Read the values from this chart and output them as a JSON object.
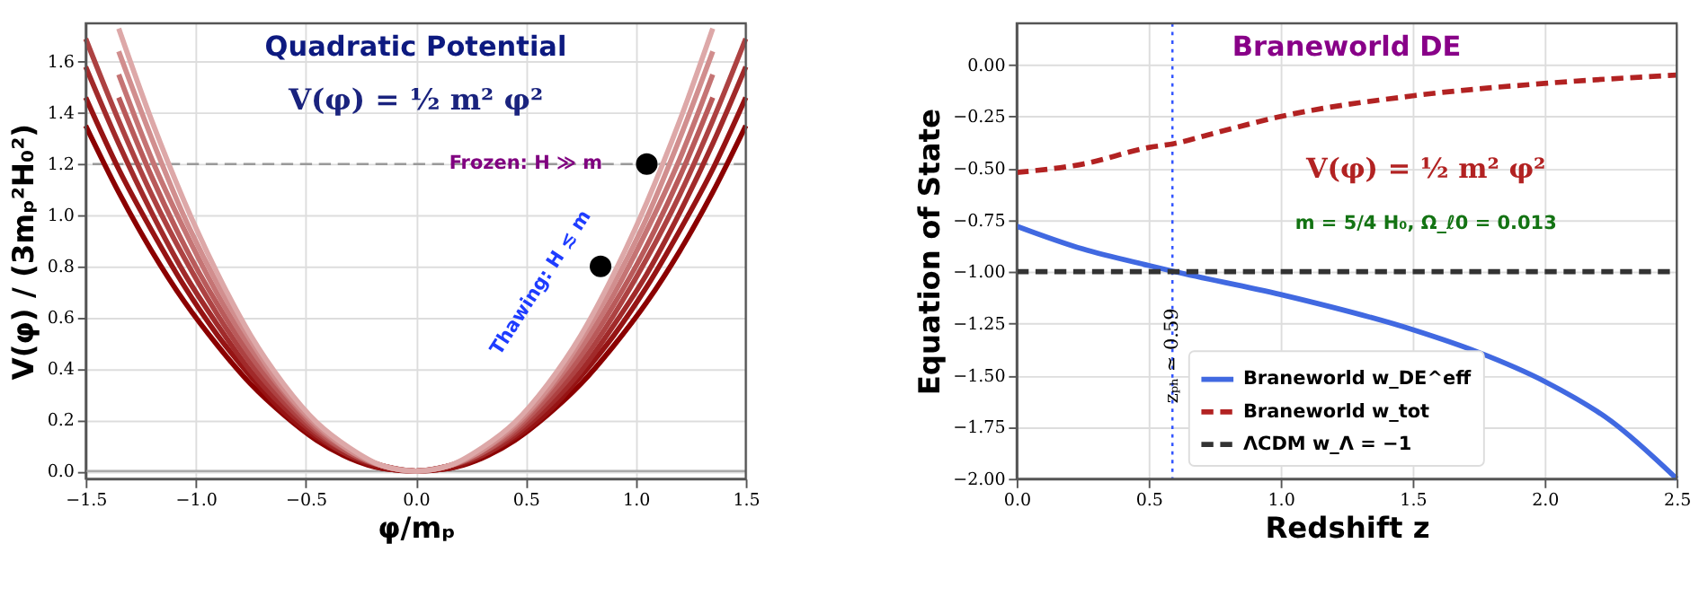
{
  "chart_data": [
    {
      "type": "line",
      "title": "Quadratic Potential",
      "xlabel": "φ/mₚ",
      "ylabel": "V(φ) / (3mₚ²H₀²)",
      "xlim": [
        -1.5,
        1.5
      ],
      "xticks": [
        {
          "value": -1.5,
          "label": "−1.5"
        },
        {
          "value": -1,
          "label": "−1.0"
        },
        {
          "value": -0.5,
          "label": "−0.5"
        },
        {
          "value": 0,
          "label": "0.0"
        },
        {
          "value": 0.5,
          "label": "0.5"
        },
        {
          "value": 1,
          "label": "1.0"
        },
        {
          "value": 1.5,
          "label": "1.5"
        }
      ],
      "ylim": [
        -0.03,
        1.75
      ],
      "yticks": [
        {
          "value": 0,
          "label": "0.0"
        },
        {
          "value": 0.2,
          "label": "0.2"
        },
        {
          "value": 0.4,
          "label": "0.4"
        },
        {
          "value": 0.6,
          "label": "0.6"
        },
        {
          "value": 0.8,
          "label": "0.8"
        },
        {
          "value": 1,
          "label": "1.0"
        },
        {
          "value": 1.2,
          "label": "1.2"
        },
        {
          "value": 1.4,
          "label": "1.4"
        },
        {
          "value": 1.6,
          "label": "1.6"
        }
      ],
      "grid": true,
      "line_style": "solid",
      "x": [
        -1.5,
        -1.35,
        -1.2,
        -1.05,
        -0.9,
        -0.75,
        -0.6,
        -0.45,
        -0.3,
        -0.15,
        0,
        0.15,
        0.3,
        0.45,
        0.6,
        0.75,
        0.9,
        1.05,
        1.2,
        1.35,
        1.5
      ],
      "series": [
        {
          "color": "#8b0000",
          "values": [
            1.35,
            1.09,
            0.86,
            0.66,
            0.49,
            0.34,
            0.22,
            0.12,
            0.05,
            0.01,
            0,
            0.01,
            0.05,
            0.12,
            0.22,
            0.34,
            0.49,
            0.66,
            0.86,
            1.09,
            1.35
          ]
        },
        {
          "color": "#961414",
          "values": [
            1.46,
            1.18,
            0.94,
            0.72,
            0.53,
            0.37,
            0.23,
            0.13,
            0.06,
            0.01,
            0,
            0.01,
            0.06,
            0.13,
            0.23,
            0.37,
            0.53,
            0.72,
            0.94,
            1.18,
            1.46
          ]
        },
        {
          "color": "#a12a2a",
          "values": [
            1.58,
            1.28,
            1.01,
            0.77,
            0.57,
            0.39,
            0.25,
            0.14,
            0.06,
            0.02,
            0,
            0.02,
            0.06,
            0.14,
            0.25,
            0.39,
            0.57,
            0.77,
            1.01,
            1.28,
            1.58
          ]
        },
        {
          "color": "#ad4242",
          "values": [
            1.69,
            1.37,
            1.08,
            0.83,
            0.61,
            0.42,
            0.27,
            0.15,
            0.07,
            0.02,
            0,
            0.02,
            0.07,
            0.15,
            0.27,
            0.42,
            0.61,
            0.83,
            1.08,
            1.37,
            1.69
          ]
        },
        {
          "color": "#b95a5a",
          "values": [
            null,
            1.46,
            1.15,
            0.88,
            0.65,
            0.45,
            0.29,
            0.16,
            0.07,
            0.02,
            0,
            0.02,
            0.07,
            0.16,
            0.29,
            0.45,
            0.65,
            0.88,
            1.15,
            1.46,
            null
          ]
        },
        {
          "color": "#c57474",
          "values": [
            null,
            1.55,
            1.22,
            0.94,
            0.69,
            0.48,
            0.31,
            0.17,
            0.08,
            0.02,
            0,
            0.02,
            0.08,
            0.17,
            0.31,
            0.48,
            0.69,
            0.94,
            1.22,
            1.55,
            null
          ]
        },
        {
          "color": "#d18e8e",
          "values": [
            null,
            1.64,
            1.3,
            0.99,
            0.73,
            0.51,
            0.32,
            0.18,
            0.08,
            0.02,
            0,
            0.02,
            0.08,
            0.18,
            0.32,
            0.51,
            0.73,
            0.99,
            1.3,
            1.64,
            null
          ]
        },
        {
          "color": "#dda8a8",
          "values": [
            null,
            1.73,
            1.37,
            1.05,
            0.77,
            0.53,
            0.34,
            0.19,
            0.09,
            0.02,
            0,
            0.02,
            0.09,
            0.19,
            0.34,
            0.53,
            0.77,
            1.05,
            1.37,
            1.73,
            null
          ]
        },
        {
          "type": "scatter",
          "color": "#000000",
          "marker": "circle",
          "x": [
            1.05,
            0.84
          ],
          "values": [
            1.2,
            0.8
          ]
        }
      ],
      "ref_lines": [
        {
          "axis": "y",
          "value": 1.2,
          "color": "#999999",
          "line_style": "dashed"
        },
        {
          "axis": "y",
          "value": 0,
          "color": "#aaaaaa",
          "line_style": "solid"
        }
      ],
      "annotations": [
        "V(φ) = ½ m² φ²",
        {
          "text": "Frozen:  H ≫ m",
          "x": 0.5,
          "y": 1.2
        },
        "Thawing:  H ≲ m"
      ]
    },
    {
      "type": "line",
      "title": "Braneworld DE",
      "xlabel": "Redshift z",
      "ylabel": "Equation of State",
      "xlim": [
        0,
        2.5
      ],
      "xticks": [
        {
          "value": 0,
          "label": "0.0"
        },
        {
          "value": 0.5,
          "label": "0.5"
        },
        {
          "value": 1,
          "label": "1.0"
        },
        {
          "value": 1.5,
          "label": "1.5"
        },
        {
          "value": 2,
          "label": "2.0"
        },
        {
          "value": 2.5,
          "label": "2.5"
        }
      ],
      "ylim": [
        -2.0,
        0.2
      ],
      "yticks": [
        {
          "value": -2,
          "label": "−2.00"
        },
        {
          "value": -1.75,
          "label": "−1.75"
        },
        {
          "value": -1.5,
          "label": "−1.50"
        },
        {
          "value": -1.25,
          "label": "−1.25"
        },
        {
          "value": -1,
          "label": "−1.00"
        },
        {
          "value": -0.75,
          "label": "−0.75"
        },
        {
          "value": -0.5,
          "label": "−0.50"
        },
        {
          "value": -0.25,
          "label": "−0.25"
        },
        {
          "value": 0,
          "label": "0.00"
        }
      ],
      "grid": true,
      "legend": "bottom",
      "series": [
        {
          "name": "Braneworld w_DE^eff",
          "color": "#4169e1",
          "line_style": "solid",
          "x": [
            0,
            0.25,
            0.5,
            0.6,
            1.0,
            1.5,
            1.75,
            2.0,
            2.25,
            2.5
          ],
          "values": [
            -0.78,
            -0.89,
            -0.97,
            -1.0,
            -1.11,
            -1.28,
            -1.39,
            -1.53,
            -1.72,
            -2.0
          ]
        },
        {
          "name": "Braneworld w_tot",
          "color": "#b22222",
          "line_style": "dashed",
          "x": [
            0,
            0.25,
            0.5,
            0.6,
            0.75,
            1.0,
            1.5,
            2.0,
            2.5
          ],
          "values": [
            -0.52,
            -0.48,
            -0.4,
            -0.38,
            -0.33,
            -0.25,
            -0.15,
            -0.09,
            -0.05
          ]
        },
        {
          "name": "ΛCDM w_Λ = −1",
          "color": "#333333",
          "line_style": "dashed",
          "x": [
            0,
            2.5
          ],
          "values": [
            -1.0,
            -1.0
          ]
        }
      ],
      "ref_lines": [
        {
          "axis": "x",
          "value": 0.59,
          "label": "zₚₕ ≃ 0.59",
          "color": "#3355ff",
          "line_style": "dotted"
        }
      ],
      "annotations": [
        "V(φ) = ½ m² φ²",
        "m = 5/4 H₀,    Ω_ℓ0 = 0.013"
      ]
    }
  ]
}
